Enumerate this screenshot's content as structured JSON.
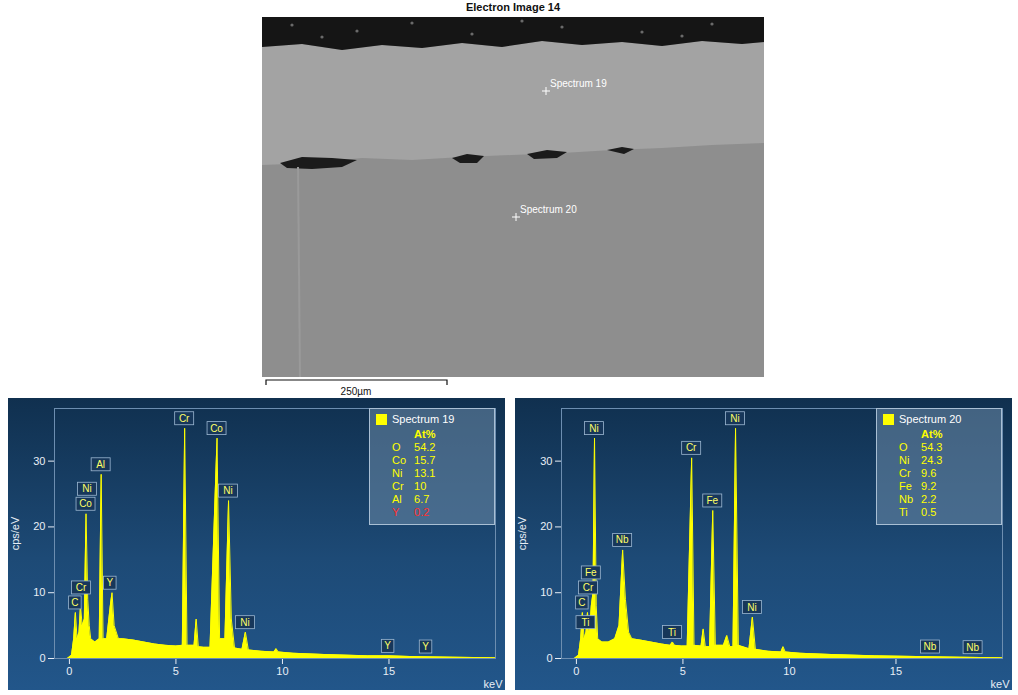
{
  "electron_image": {
    "title": "Electron Image 14",
    "markers": [
      "Spectrum 19",
      "Spectrum 20"
    ],
    "scale_bar": "250µm"
  },
  "chart_data": [
    {
      "type": "area",
      "x": [
        -0.1,
        0.1,
        0.2,
        0.28,
        0.36,
        0.45,
        0.52,
        0.6,
        0.7,
        0.78,
        0.86,
        0.93,
        1.0,
        1.2,
        1.4,
        1.49,
        1.58,
        1.75,
        1.92,
        2.0,
        2.1,
        2.3,
        2.5,
        3.0,
        3.5,
        4.0,
        4.5,
        5.0,
        5.3,
        5.41,
        5.52,
        5.85,
        5.95,
        6.05,
        6.3,
        6.6,
        6.93,
        7.05,
        7.3,
        7.47,
        7.6,
        7.75,
        8.1,
        8.26,
        8.4,
        9.0,
        9.6,
        9.7,
        9.8,
        10.5,
        12,
        14,
        15,
        16,
        18,
        20
      ],
      "series": [
        {
          "name": "Spectrum 19",
          "color": "#ffff00",
          "values": [
            0,
            0.5,
            3,
            7,
            3,
            4,
            8,
            5,
            6,
            22,
            9,
            5,
            3,
            2.5,
            3,
            28,
            3,
            3,
            8,
            10,
            5,
            3,
            3,
            2.8,
            2.5,
            2.2,
            2,
            1.9,
            2,
            35,
            2,
            2,
            6,
            1.8,
            1.7,
            1.7,
            33.5,
            3,
            3,
            24,
            6,
            1.6,
            1.4,
            4,
            1.3,
            1.1,
            1,
            1.5,
            1,
            0.8,
            0.6,
            0.4,
            0.4,
            0.3,
            0.2,
            0.1
          ]
        }
      ],
      "xlim": [
        -0.7,
        20
      ],
      "xticks": [
        0,
        5,
        10,
        15
      ],
      "x_label": "keV",
      "ylim": [
        0,
        38
      ],
      "yticks": [
        0,
        10,
        20,
        30
      ],
      "y_label": "cps/eV",
      "legend": "top-right",
      "composition": {
        "header": "At%",
        "elements": [
          "O",
          "Co",
          "Ni",
          "Cr",
          "Al",
          "Y"
        ],
        "values": [
          54.2,
          15.7,
          13.1,
          10.0,
          6.7,
          0.2
        ],
        "colors": [
          "#ffff00",
          "#ffff00",
          "#ffff00",
          "#ffff00",
          "#ffff00",
          "#ff3030"
        ]
      },
      "peak_labels": [
        {
          "label": "C",
          "x": 0.28,
          "y": 7
        },
        {
          "label": "Cr",
          "x": 0.57,
          "y": 5
        },
        {
          "label": "Co",
          "x": 0.78,
          "y": 22
        },
        {
          "label": "Ni",
          "x": 0.85,
          "y": 22
        },
        {
          "label": "Al",
          "x": 1.49,
          "y": 28
        },
        {
          "label": "Y",
          "x": 1.92,
          "y": 10
        },
        {
          "label": "Cr",
          "x": 5.41,
          "y": 35
        },
        {
          "label": "Co",
          "x": 6.93,
          "y": 33.5
        },
        {
          "label": "Ni",
          "x": 7.47,
          "y": 24
        },
        {
          "label": "Ni",
          "x": 8.26,
          "y": 4
        },
        {
          "label": "Y",
          "x": 14.96,
          "y": 0.4
        },
        {
          "label": "Y",
          "x": 16.74,
          "y": 0.3
        }
      ]
    },
    {
      "type": "area",
      "x": [
        -0.1,
        0.1,
        0.2,
        0.28,
        0.36,
        0.45,
        0.52,
        0.57,
        0.62,
        0.7,
        0.78,
        0.85,
        0.93,
        1.0,
        1.2,
        1.5,
        1.8,
        2.0,
        2.17,
        2.3,
        2.45,
        2.6,
        3.0,
        3.5,
        4.0,
        4.4,
        4.51,
        4.6,
        4.93,
        5.2,
        5.41,
        5.52,
        5.85,
        5.95,
        6.05,
        6.25,
        6.4,
        6.52,
        6.9,
        7.06,
        7.2,
        7.35,
        7.47,
        7.6,
        8.1,
        8.26,
        8.4,
        9.0,
        9.6,
        9.7,
        9.8,
        10.5,
        12,
        14,
        16,
        18,
        20
      ],
      "series": [
        {
          "name": "Spectrum 20",
          "color": "#ffff00",
          "values": [
            0,
            0.5,
            3,
            7,
            3,
            4,
            7,
            5,
            4,
            8,
            10,
            33.5,
            8,
            3,
            2.5,
            2.5,
            3,
            5,
            16.5,
            9,
            4,
            3,
            2.8,
            2.5,
            2.2,
            2,
            2.5,
            2,
            1.9,
            1.9,
            30.5,
            2,
            1.9,
            4.5,
            1.8,
            1.8,
            22.5,
            2,
            2,
            3.5,
            1.8,
            1.8,
            35,
            2,
            1.5,
            6.3,
            1.4,
            1.1,
            1,
            1.8,
            1,
            0.8,
            0.6,
            0.4,
            0.3,
            0.2,
            0.1
          ]
        }
      ],
      "xlim": [
        -0.7,
        20
      ],
      "xticks": [
        0,
        5,
        10,
        15
      ],
      "x_label": "keV",
      "ylim": [
        0,
        38
      ],
      "yticks": [
        0,
        10,
        20,
        30
      ],
      "y_label": "cps/eV",
      "legend": "top-right",
      "composition": {
        "header": "At%",
        "elements": [
          "O",
          "Ni",
          "Cr",
          "Fe",
          "Nb",
          "Ti"
        ],
        "values": [
          54.3,
          24.3,
          9.6,
          9.2,
          2.2,
          0.5
        ],
        "colors": [
          "#ffff00",
          "#ffff00",
          "#ffff00",
          "#ffff00",
          "#ffff00",
          "#ffff00"
        ]
      },
      "peak_labels": [
        {
          "label": "C",
          "x": 0.28,
          "y": 7
        },
        {
          "label": "Ti",
          "x": 0.45,
          "y": 4
        },
        {
          "label": "Cr",
          "x": 0.57,
          "y": 5
        },
        {
          "label": "Fe",
          "x": 0.7,
          "y": 8
        },
        {
          "label": "Ni",
          "x": 0.85,
          "y": 33.5
        },
        {
          "label": "Nb",
          "x": 2.17,
          "y": 16.5
        },
        {
          "label": "Ti",
          "x": 4.51,
          "y": 2.5
        },
        {
          "label": "Cr",
          "x": 5.41,
          "y": 30.5
        },
        {
          "label": "Fe",
          "x": 6.4,
          "y": 22.5
        },
        {
          "label": "Ni",
          "x": 7.47,
          "y": 35
        },
        {
          "label": "Ni",
          "x": 8.26,
          "y": 6.3
        },
        {
          "label": "Nb",
          "x": 16.62,
          "y": 0.3
        },
        {
          "label": "Nb",
          "x": 18.62,
          "y": 0.2
        }
      ]
    }
  ]
}
